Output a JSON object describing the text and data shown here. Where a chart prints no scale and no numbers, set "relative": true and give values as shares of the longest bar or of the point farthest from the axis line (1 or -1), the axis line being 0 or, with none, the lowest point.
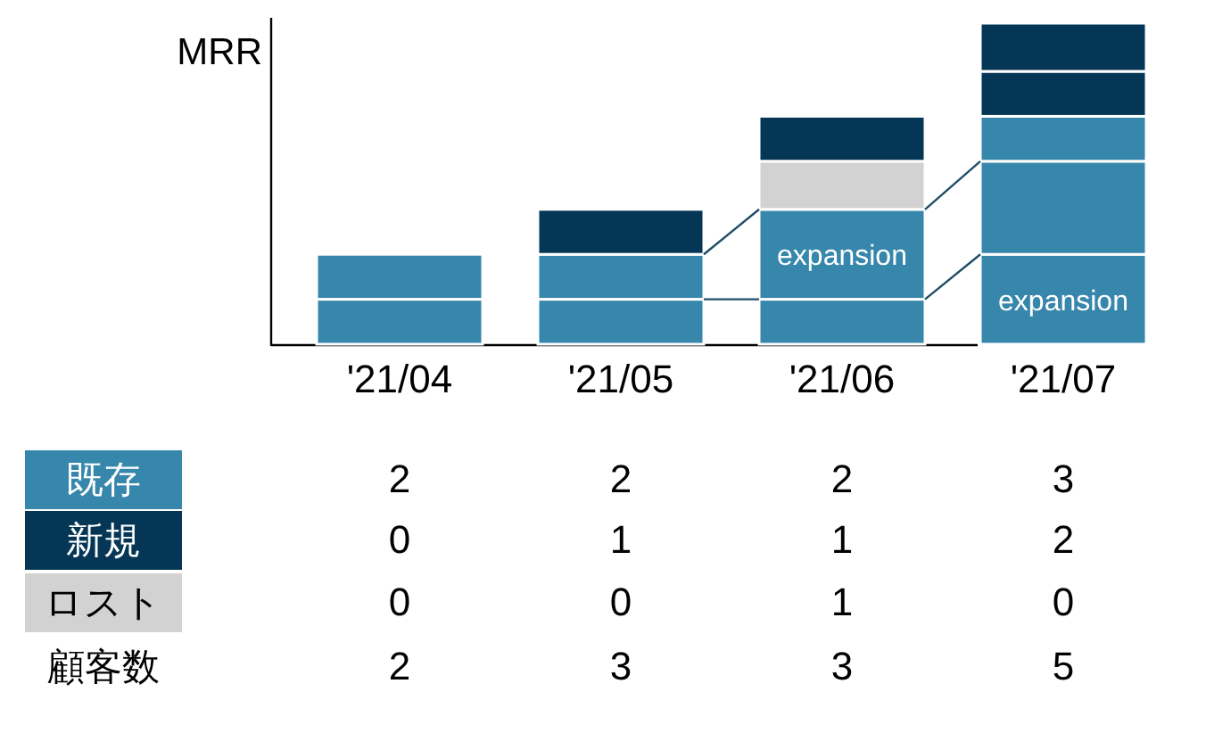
{
  "chart_data": [
    {
      "type": "bar",
      "ylabel": "MRR",
      "relative": true,
      "stacked": true,
      "categories": [
        "'21/04",
        "'21/05",
        "'21/06",
        "'21/07"
      ],
      "series": [
        {
          "colors": [
            "#3786ab",
            "#3786ab",
            "#3786ab",
            "#3786ab"
          ],
          "values": [
            0.14,
            0.14,
            0.14,
            0.28
          ]
        },
        {
          "colors": [
            "#3786ab",
            "#3786ab",
            "#3786ab",
            "#3786ab"
          ],
          "values": [
            0.14,
            0.14,
            0.28,
            0.29
          ]
        },
        {
          "colors": [
            null,
            "#053655",
            "#d2d2d2",
            "#3786ab"
          ],
          "values": [
            null,
            0.14,
            0.15,
            0.14
          ]
        },
        {
          "colors": [
            null,
            null,
            "#053655",
            "#053655"
          ],
          "values": [
            null,
            null,
            0.14,
            0.14
          ]
        },
        {
          "colors": [
            null,
            null,
            null,
            "#053655"
          ],
          "values": [
            null,
            null,
            null,
            0.15
          ]
        }
      ],
      "annotations": [
        "expansion",
        "expansion"
      ]
    },
    {
      "type": "heatmap",
      "data_labels": true,
      "categories": [
        null,
        null,
        null,
        null
      ],
      "y_categories": [
        "既存",
        "新規",
        "ロスト",
        "顧客数"
      ],
      "colors": [
        "#3786ab",
        "#053655",
        "#d2d2d2",
        null
      ],
      "cells": [
        [
          2,
          2,
          2,
          3
        ],
        [
          0,
          1,
          1,
          2
        ],
        [
          0,
          0,
          1,
          0
        ],
        [
          2,
          3,
          3,
          5
        ]
      ]
    }
  ]
}
